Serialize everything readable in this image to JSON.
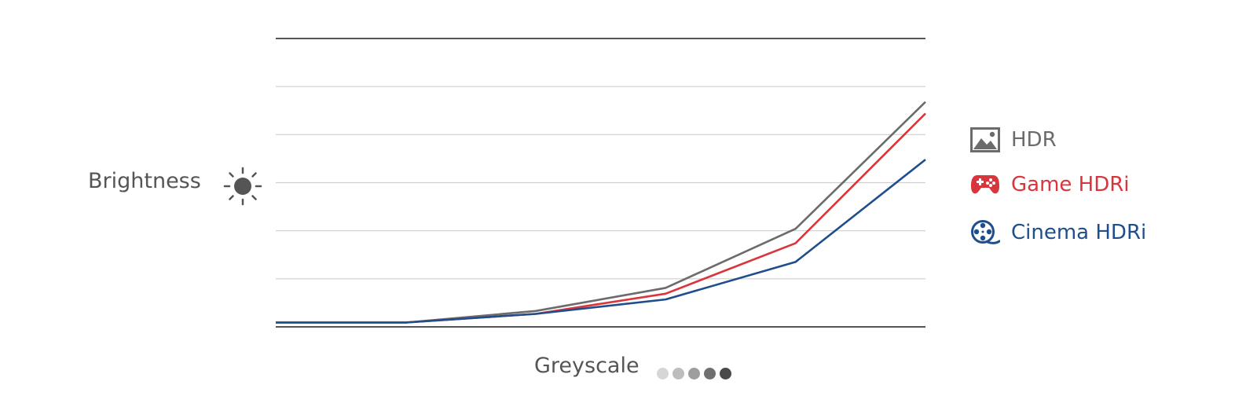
{
  "chart_data": {
    "type": "line",
    "x": [
      1,
      2,
      3,
      4,
      5,
      6
    ],
    "ylim": [
      0,
      100
    ],
    "xlabel": "Greyscale",
    "ylabel": "Brightness",
    "grid": true,
    "legend": "right",
    "series": [
      {
        "name": "HDR",
        "color": "#6b6b6b",
        "icon": "image-icon",
        "values": [
          1.5,
          1.5,
          5.5,
          13.5,
          34,
          78
        ]
      },
      {
        "name": "Game HDRi",
        "color": "#d9353c",
        "icon": "gamepad-icon",
        "values": [
          1.5,
          1.5,
          4.5,
          11.5,
          29,
          74
        ]
      },
      {
        "name": "Cinema HDRi",
        "color": "#1f4e8c",
        "icon": "film-reel-icon",
        "values": [
          1.5,
          1.5,
          4.5,
          9.5,
          22.5,
          58
        ]
      }
    ],
    "greyscale_dots": [
      "#d6d6d6",
      "#bdbdbd",
      "#9e9e9e",
      "#707070",
      "#4a4a4a"
    ]
  }
}
